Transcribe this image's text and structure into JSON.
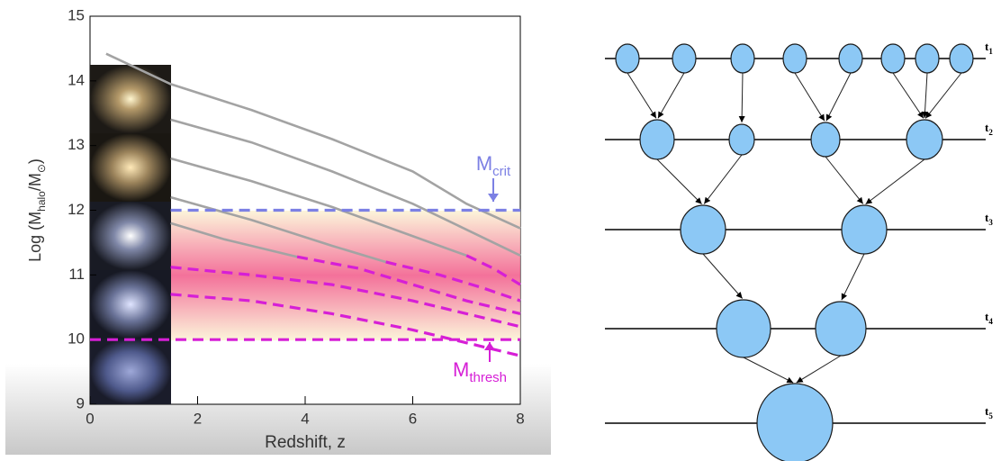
{
  "chart_data": {
    "type": "line",
    "xlabel": "Redshift, z",
    "ylabel_parts": [
      "Log (M",
      "halo",
      "/M",
      "⊙",
      ")"
    ],
    "xlim": [
      0,
      8
    ],
    "ylim": [
      9,
      15
    ],
    "xticks": [
      0,
      2,
      4,
      6,
      8
    ],
    "yticks": [
      9,
      10,
      11,
      12,
      13,
      14,
      15
    ],
    "series": [
      {
        "color": "#a3a3a3",
        "style": "solid",
        "x": [
          0.3,
          1.5,
          3,
          4.5,
          6,
          7,
          8
        ],
        "values": [
          14.42,
          13.95,
          13.55,
          13.1,
          12.6,
          12.1,
          11.72
        ]
      },
      {
        "color": "#a3a3a3",
        "style": "solid",
        "x": [
          1.5,
          3,
          4.5,
          6,
          7,
          8
        ],
        "values": [
          13.4,
          13.05,
          12.6,
          12.1,
          11.7,
          11.3
        ]
      },
      {
        "color": "#a3a3a3",
        "style": "solid",
        "x": [
          1.5,
          3,
          4.5,
          6,
          7
        ],
        "values": [
          12.8,
          12.45,
          12.05,
          11.6,
          11.3
        ]
      },
      {
        "color": "#a3a3a3",
        "style": "solid",
        "x": [
          1.5,
          3,
          4.5,
          5.5
        ],
        "values": [
          12.2,
          11.85,
          11.45,
          11.2
        ]
      },
      {
        "color": "#a3a3a3",
        "style": "solid",
        "x": [
          1.5,
          2.5,
          3.85
        ],
        "values": [
          11.8,
          11.55,
          11.28
        ]
      },
      {
        "color": "#d61fd6",
        "style": "dashed",
        "x": [
          5.5,
          6.5,
          7.3,
          8
        ],
        "values": [
          11.2,
          11.0,
          10.8,
          10.6
        ]
      },
      {
        "color": "#d61fd6",
        "style": "dashed",
        "x": [
          7,
          7.5,
          8
        ],
        "values": [
          11.3,
          11.1,
          10.85
        ]
      },
      {
        "color": "#d61fd6",
        "style": "dashed",
        "x": [
          1.5,
          3,
          4.5,
          6,
          7,
          8
        ],
        "values": [
          11.12,
          11.0,
          10.85,
          10.6,
          10.4,
          10.2
        ]
      },
      {
        "color": "#d61fd6",
        "style": "dashed",
        "x": [
          1.5,
          3,
          4.5,
          6,
          7,
          8
        ],
        "values": [
          10.7,
          10.6,
          10.4,
          10.15,
          9.95,
          9.75
        ]
      },
      {
        "color": "#d61fd6",
        "style": "dashed",
        "x": [
          3.85,
          5,
          6,
          7,
          8
        ],
        "values": [
          11.28,
          11.1,
          10.85,
          10.6,
          10.4
        ]
      },
      {
        "color": "#7c80e4",
        "style": "dashed",
        "x": [
          1.5,
          8
        ],
        "values": [
          12,
          12
        ]
      },
      {
        "color": "#d61fd6",
        "style": "dashed",
        "x": [
          0,
          8
        ],
        "values": [
          10,
          10
        ]
      }
    ],
    "annotations": [
      {
        "text": "M",
        "sub": "crit",
        "color": "#7c80e4"
      },
      {
        "text": "M",
        "sub": "thresh",
        "color": "#d61fd6"
      }
    ]
  },
  "diagram": {
    "levels": [
      {
        "text": "t",
        "sub": "1"
      },
      {
        "text": "t",
        "sub": "2"
      },
      {
        "text": "t",
        "sub": "3"
      },
      {
        "text": "t",
        "sub": "4"
      },
      {
        "text": "t",
        "sub": "5"
      }
    ]
  }
}
